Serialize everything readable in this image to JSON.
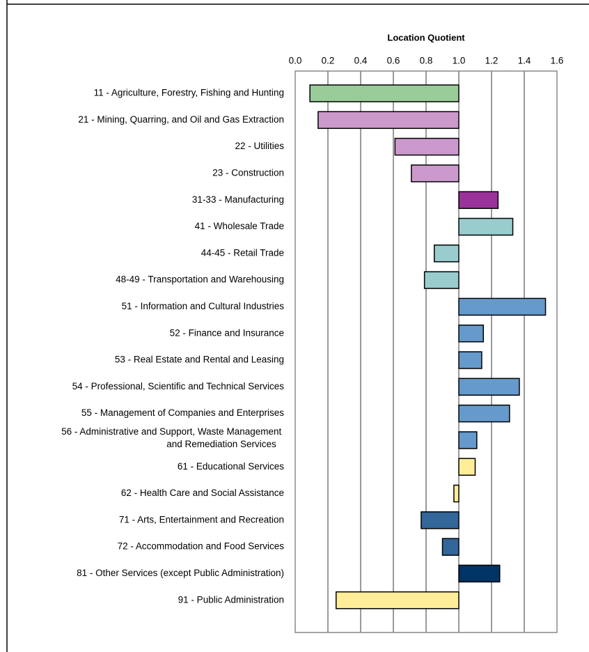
{
  "chart_data": {
    "type": "hbar_diverging",
    "x_label": "Location Quotient",
    "baseline": 1.0,
    "categories": [
      "11 - Agriculture, Forestry, Fishing and Hunting",
      "21 - Mining, Quarring, and Oil and Gas Extraction",
      "22 - Utilities",
      "23 - Construction",
      "31-33 - Manufacturing",
      "41 - Wholesale Trade",
      "44-45 - Retail Trade",
      "48-49 - Transportation and Warehousing",
      "51 - Information and Cultural Industries",
      "52 - Finance and Insurance",
      "53 - Real Estate and Rental and Leasing",
      "54 - Professional, Scientific and Technical Services",
      "55 - Management of Companies and Enterprises",
      "56 - Administrative and Support, Waste Management and Remediation Services",
      "61 - Educational Services",
      "62 - Health Care and Social Assistance",
      "71 - Arts, Entertainment and Recreation",
      "72 - Accommodation and Food Services",
      "81 - Other Services (except Public Administration)",
      "91 - Public Administration"
    ],
    "values": [
      0.09,
      0.14,
      0.61,
      0.71,
      1.24,
      1.33,
      0.85,
      0.79,
      1.53,
      1.15,
      1.14,
      1.37,
      1.31,
      1.11,
      1.1,
      0.97,
      0.77,
      0.9,
      1.25,
      0.25
    ],
    "colors": [
      "#99cc99",
      "#cc99cc",
      "#cc99cc",
      "#cc99cc",
      "#993399",
      "#99cccc",
      "#99cccc",
      "#99cccc",
      "#6699cc",
      "#6699cc",
      "#6699cc",
      "#6699cc",
      "#6699cc",
      "#6699cc",
      "#ffee99",
      "#ffee99",
      "#336699",
      "#336699",
      "#003366",
      "#ffee99"
    ],
    "xlim": [
      0,
      1.6
    ],
    "xticks": [
      {
        "value": 0,
        "label": "0.0"
      },
      0.2,
      0.4,
      0.6,
      0.8,
      {
        "value": 1,
        "label": "1.0"
      },
      1.2,
      1.4,
      1.6
    ],
    "grid": true
  }
}
